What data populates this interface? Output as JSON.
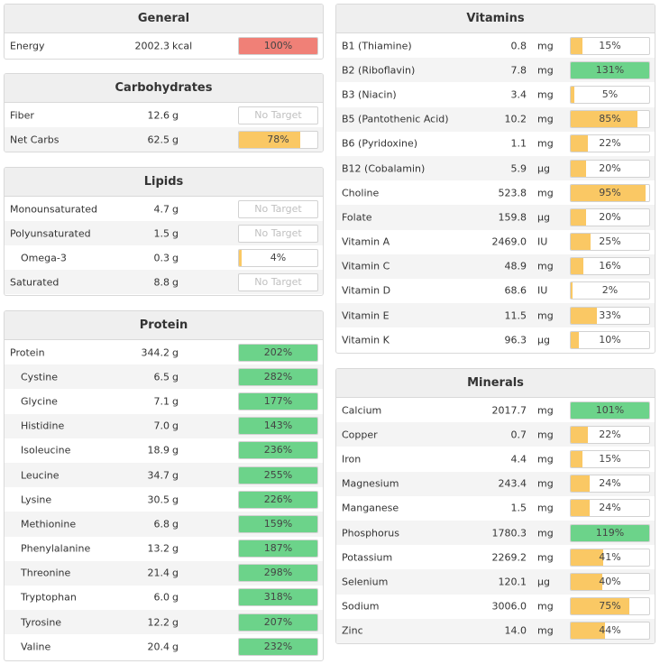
{
  "general": {
    "title": "General",
    "rows": [
      {
        "name": "Energy",
        "amount": "2002.3",
        "unit": "kcal",
        "pct_label": "100%",
        "pct": 100,
        "color": "red"
      }
    ]
  },
  "carbohydrates": {
    "title": "Carbohydrates",
    "rows": [
      {
        "name": "Fiber",
        "amount": "12.6",
        "unit": "g",
        "pct_label": "No Target",
        "pct": null,
        "color": "none"
      },
      {
        "name": "Net Carbs",
        "amount": "62.5",
        "unit": "g",
        "pct_label": "78%",
        "pct": 78,
        "color": "orange"
      }
    ]
  },
  "lipids": {
    "title": "Lipids",
    "rows": [
      {
        "name": "Monounsaturated",
        "amount": "4.7",
        "unit": "g",
        "pct_label": "No Target",
        "pct": null,
        "color": "none"
      },
      {
        "name": "Polyunsaturated",
        "amount": "1.5",
        "unit": "g",
        "pct_label": "No Target",
        "pct": null,
        "color": "none"
      },
      {
        "name": "Omega-3",
        "amount": "0.3",
        "unit": "g",
        "pct_label": "4%",
        "pct": 4,
        "color": "orange",
        "indent": true
      },
      {
        "name": "Saturated",
        "amount": "8.8",
        "unit": "g",
        "pct_label": "No Target",
        "pct": null,
        "color": "none"
      }
    ]
  },
  "protein": {
    "title": "Protein",
    "rows": [
      {
        "name": "Protein",
        "amount": "344.2",
        "unit": "g",
        "pct_label": "202%",
        "pct": 202,
        "color": "green"
      },
      {
        "name": "Cystine",
        "amount": "6.5",
        "unit": "g",
        "pct_label": "282%",
        "pct": 282,
        "color": "green",
        "indent": true
      },
      {
        "name": "Glycine",
        "amount": "7.1",
        "unit": "g",
        "pct_label": "177%",
        "pct": 177,
        "color": "green",
        "indent": true
      },
      {
        "name": "Histidine",
        "amount": "7.0",
        "unit": "g",
        "pct_label": "143%",
        "pct": 143,
        "color": "green",
        "indent": true
      },
      {
        "name": "Isoleucine",
        "amount": "18.9",
        "unit": "g",
        "pct_label": "236%",
        "pct": 236,
        "color": "green",
        "indent": true
      },
      {
        "name": "Leucine",
        "amount": "34.7",
        "unit": "g",
        "pct_label": "255%",
        "pct": 255,
        "color": "green",
        "indent": true
      },
      {
        "name": "Lysine",
        "amount": "30.5",
        "unit": "g",
        "pct_label": "226%",
        "pct": 226,
        "color": "green",
        "indent": true
      },
      {
        "name": "Methionine",
        "amount": "6.8",
        "unit": "g",
        "pct_label": "159%",
        "pct": 159,
        "color": "green",
        "indent": true
      },
      {
        "name": "Phenylalanine",
        "amount": "13.2",
        "unit": "g",
        "pct_label": "187%",
        "pct": 187,
        "color": "green",
        "indent": true
      },
      {
        "name": "Threonine",
        "amount": "21.4",
        "unit": "g",
        "pct_label": "298%",
        "pct": 298,
        "color": "green",
        "indent": true
      },
      {
        "name": "Tryptophan",
        "amount": "6.0",
        "unit": "g",
        "pct_label": "318%",
        "pct": 318,
        "color": "green",
        "indent": true
      },
      {
        "name": "Tyrosine",
        "amount": "12.2",
        "unit": "g",
        "pct_label": "207%",
        "pct": 207,
        "color": "green",
        "indent": true
      },
      {
        "name": "Valine",
        "amount": "20.4",
        "unit": "g",
        "pct_label": "232%",
        "pct": 232,
        "color": "green",
        "indent": true
      }
    ]
  },
  "vitamins": {
    "title": "Vitamins",
    "rows": [
      {
        "name": "B1 (Thiamine)",
        "amount": "0.8",
        "unit": "mg",
        "pct_label": "15%",
        "pct": 15,
        "color": "orange"
      },
      {
        "name": "B2 (Riboflavin)",
        "amount": "7.8",
        "unit": "mg",
        "pct_label": "131%",
        "pct": 131,
        "color": "green"
      },
      {
        "name": "B3 (Niacin)",
        "amount": "3.4",
        "unit": "mg",
        "pct_label": "5%",
        "pct": 5,
        "color": "orange"
      },
      {
        "name": "B5 (Pantothenic Acid)",
        "amount": "10.2",
        "unit": "mg",
        "pct_label": "85%",
        "pct": 85,
        "color": "orange"
      },
      {
        "name": "B6 (Pyridoxine)",
        "amount": "1.1",
        "unit": "mg",
        "pct_label": "22%",
        "pct": 22,
        "color": "orange"
      },
      {
        "name": "B12 (Cobalamin)",
        "amount": "5.9",
        "unit": "µg",
        "pct_label": "20%",
        "pct": 20,
        "color": "orange"
      },
      {
        "name": "Choline",
        "amount": "523.8",
        "unit": "mg",
        "pct_label": "95%",
        "pct": 95,
        "color": "orange"
      },
      {
        "name": "Folate",
        "amount": "159.8",
        "unit": "µg",
        "pct_label": "20%",
        "pct": 20,
        "color": "orange"
      },
      {
        "name": "Vitamin A",
        "amount": "2469.0",
        "unit": "IU",
        "pct_label": "25%",
        "pct": 25,
        "color": "orange"
      },
      {
        "name": "Vitamin C",
        "amount": "48.9",
        "unit": "mg",
        "pct_label": "16%",
        "pct": 16,
        "color": "orange"
      },
      {
        "name": "Vitamin D",
        "amount": "68.6",
        "unit": "IU",
        "pct_label": "2%",
        "pct": 2,
        "color": "orange"
      },
      {
        "name": "Vitamin E",
        "amount": "11.5",
        "unit": "mg",
        "pct_label": "33%",
        "pct": 33,
        "color": "orange"
      },
      {
        "name": "Vitamin K",
        "amount": "96.3",
        "unit": "µg",
        "pct_label": "10%",
        "pct": 10,
        "color": "orange"
      }
    ]
  },
  "minerals": {
    "title": "Minerals",
    "rows": [
      {
        "name": "Calcium",
        "amount": "2017.7",
        "unit": "mg",
        "pct_label": "101%",
        "pct": 101,
        "color": "green"
      },
      {
        "name": "Copper",
        "amount": "0.7",
        "unit": "mg",
        "pct_label": "22%",
        "pct": 22,
        "color": "orange"
      },
      {
        "name": "Iron",
        "amount": "4.4",
        "unit": "mg",
        "pct_label": "15%",
        "pct": 15,
        "color": "orange"
      },
      {
        "name": "Magnesium",
        "amount": "243.4",
        "unit": "mg",
        "pct_label": "24%",
        "pct": 24,
        "color": "orange"
      },
      {
        "name": "Manganese",
        "amount": "1.5",
        "unit": "mg",
        "pct_label": "24%",
        "pct": 24,
        "color": "orange"
      },
      {
        "name": "Phosphorus",
        "amount": "1780.3",
        "unit": "mg",
        "pct_label": "119%",
        "pct": 119,
        "color": "green"
      },
      {
        "name": "Potassium",
        "amount": "2269.2",
        "unit": "mg",
        "pct_label": "41%",
        "pct": 41,
        "color": "orange"
      },
      {
        "name": "Selenium",
        "amount": "120.1",
        "unit": "µg",
        "pct_label": "40%",
        "pct": 40,
        "color": "orange"
      },
      {
        "name": "Sodium",
        "amount": "3006.0",
        "unit": "mg",
        "pct_label": "75%",
        "pct": 75,
        "color": "orange"
      },
      {
        "name": "Zinc",
        "amount": "14.0",
        "unit": "mg",
        "pct_label": "44%",
        "pct": 44,
        "color": "orange"
      }
    ]
  }
}
